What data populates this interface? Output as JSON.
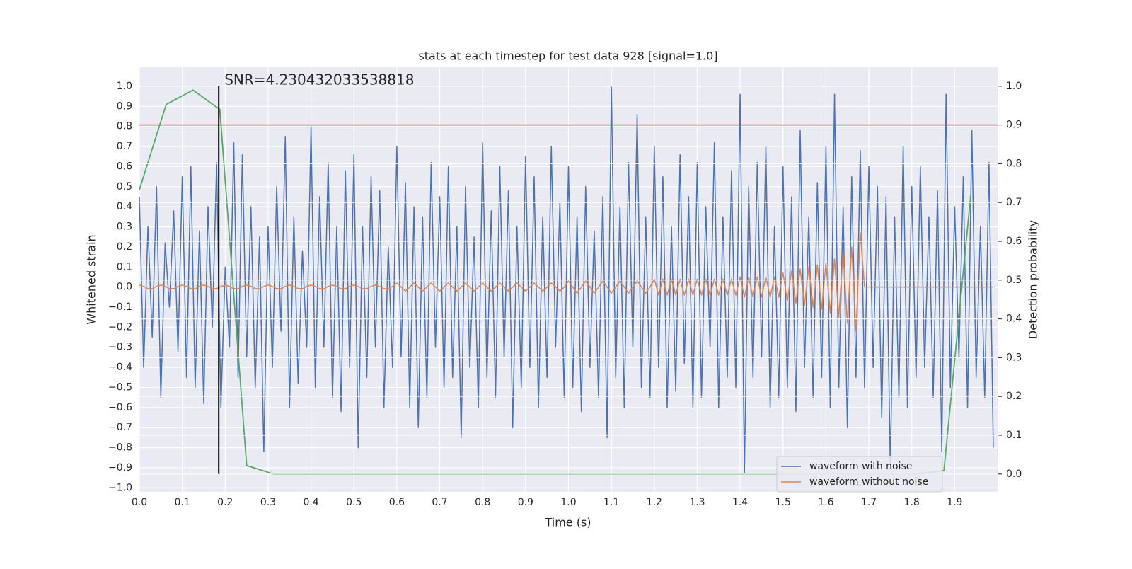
{
  "chart_data": {
    "type": "line",
    "title": "stats at each timestep for test data 928 [signal=1.0]",
    "xlabel": "Time (s)",
    "ylabel": "Whitened strain",
    "y2label": "Detection probability",
    "annotation": "SNR=4.230432033538818",
    "grid": true,
    "legend": "lower right",
    "xlim": [
      0,
      2.0
    ],
    "ylim": [
      -1.02,
      1.095
    ],
    "y2lim": [
      -0.046,
      1.049
    ],
    "xticks": [
      {
        "value": 0,
        "label": "0.0"
      },
      0.1,
      0.2,
      0.3,
      0.4,
      0.5,
      0.6,
      0.7,
      0.8,
      0.9,
      {
        "value": 1,
        "label": "1.0"
      },
      1.1,
      1.2,
      1.3,
      1.4,
      1.5,
      1.6,
      1.7,
      1.8,
      1.9
    ],
    "yticks": [
      {
        "value": -1,
        "label": "−1.0"
      },
      {
        "value": -0.9,
        "label": "−0.9"
      },
      {
        "value": -0.8,
        "label": "−0.8"
      },
      {
        "value": -0.7,
        "label": "−0.7"
      },
      {
        "value": -0.6,
        "label": "−0.6"
      },
      {
        "value": -0.5,
        "label": "−0.5"
      },
      {
        "value": -0.4,
        "label": "−0.4"
      },
      {
        "value": -0.3,
        "label": "−0.3"
      },
      {
        "value": -0.2,
        "label": "−0.2"
      },
      {
        "value": -0.1,
        "label": "−0.1"
      },
      {
        "value": 0,
        "label": "0.0"
      },
      0.1,
      0.2,
      0.3,
      0.4,
      0.5,
      0.6,
      0.7,
      0.8,
      0.9,
      {
        "value": 1,
        "label": "1.0"
      }
    ],
    "y2ticks": [
      {
        "value": 0,
        "label": "0.0"
      },
      0.1,
      0.2,
      0.3,
      0.4,
      0.5,
      0.6,
      0.7,
      0.8,
      0.9,
      {
        "value": 1,
        "label": "1.0"
      }
    ],
    "x": [
      0,
      0.01,
      0.02,
      0.03,
      0.04,
      0.05,
      0.06,
      0.07,
      0.08,
      0.09,
      0.1,
      0.11,
      0.12,
      0.13,
      0.14,
      0.15,
      0.16,
      0.17,
      0.18,
      0.19,
      0.2,
      0.21,
      0.22,
      0.23,
      0.24,
      0.25,
      0.26,
      0.27,
      0.28,
      0.29,
      0.3,
      0.31,
      0.32,
      0.33,
      0.34,
      0.35,
      0.36,
      0.37,
      0.38,
      0.39,
      0.4,
      0.41,
      0.42,
      0.43,
      0.44,
      0.45,
      0.46,
      0.47,
      0.48,
      0.49,
      0.5,
      0.51,
      0.52,
      0.53,
      0.54,
      0.55,
      0.56,
      0.57,
      0.58,
      0.59,
      0.6,
      0.61,
      0.62,
      0.63,
      0.64,
      0.65,
      0.66,
      0.67,
      0.68,
      0.69,
      0.7,
      0.71,
      0.72,
      0.73,
      0.74,
      0.75,
      0.76,
      0.77,
      0.78,
      0.79,
      0.8,
      0.81,
      0.82,
      0.83,
      0.84,
      0.85,
      0.86,
      0.87,
      0.88,
      0.89,
      0.9,
      0.91,
      0.92,
      0.93,
      0.94,
      0.95,
      0.96,
      0.97,
      0.98,
      0.99,
      1,
      1.01,
      1.02,
      1.03,
      1.04,
      1.05,
      1.06,
      1.07,
      1.08,
      1.09,
      1.1,
      1.11,
      1.12,
      1.13,
      1.14,
      1.15,
      1.16,
      1.17,
      1.18,
      1.19,
      1.2,
      1.21,
      1.22,
      1.23,
      1.24,
      1.25,
      1.26,
      1.27,
      1.28,
      1.29,
      1.3,
      1.31,
      1.32,
      1.33,
      1.34,
      1.35,
      1.36,
      1.37,
      1.38,
      1.39,
      1.4,
      1.41,
      1.42,
      1.43,
      1.44,
      1.45,
      1.46,
      1.47,
      1.48,
      1.49,
      1.5,
      1.51,
      1.52,
      1.53,
      1.54,
      1.55,
      1.56,
      1.57,
      1.58,
      1.59,
      1.6,
      1.61,
      1.62,
      1.63,
      1.64,
      1.65,
      1.66,
      1.67,
      1.68,
      1.69,
      1.7,
      1.71,
      1.72,
      1.73,
      1.74,
      1.75,
      1.76,
      1.77,
      1.78,
      1.79,
      1.8,
      1.81,
      1.82,
      1.83,
      1.84,
      1.85,
      1.86,
      1.87,
      1.88,
      1.89,
      1.9,
      1.91,
      1.92,
      1.93,
      1.94,
      1.95,
      1.96,
      1.97,
      1.98,
      1.99
    ],
    "series": [
      {
        "name": "waveform with noise",
        "color": "#4c72b0",
        "values": [
          0.45,
          -0.4,
          0.3,
          -0.25,
          0.5,
          -0.55,
          0.22,
          -0.1,
          0.38,
          -0.32,
          0.55,
          -0.45,
          0.6,
          -0.5,
          0.28,
          -0.58,
          0.4,
          -0.2,
          0.62,
          -0.6,
          0.1,
          -0.3,
          0.72,
          -0.45,
          0.66,
          -0.35,
          0.4,
          -0.5,
          0.25,
          -0.82,
          0.3,
          -0.4,
          0.5,
          -0.22,
          0.75,
          -0.6,
          0.35,
          -0.48,
          0.18,
          -0.3,
          0.8,
          -0.5,
          0.45,
          -0.3,
          0.62,
          -0.55,
          0.3,
          -0.62,
          0.58,
          -0.4,
          0.66,
          -0.8,
          0.3,
          -0.45,
          0.55,
          -0.3,
          0.48,
          -0.6,
          0.2,
          -0.4,
          0.7,
          -0.35,
          0.52,
          -0.6,
          0.4,
          -0.7,
          0.35,
          -0.55,
          0.62,
          -0.3,
          0.45,
          -0.5,
          0.6,
          -0.45,
          0.3,
          -0.75,
          0.5,
          -0.4,
          0.25,
          -0.6,
          0.72,
          -0.45,
          0.38,
          -0.55,
          0.6,
          -0.35,
          0.48,
          -0.7,
          0.3,
          -0.5,
          0.65,
          -0.4,
          0.55,
          -0.6,
          0.35,
          -0.45,
          0.7,
          -0.3,
          0.42,
          -0.55,
          0.6,
          -0.5,
          0.35,
          -0.62,
          0.5,
          -0.4,
          0.28,
          -0.55,
          0.45,
          -0.75,
          1.0,
          -0.45,
          0.4,
          -0.6,
          0.62,
          -0.3,
          0.86,
          -0.5,
          0.35,
          -0.55,
          0.7,
          -0.4,
          0.55,
          -0.6,
          0.3,
          -0.52,
          0.66,
          -0.38,
          0.45,
          -0.6,
          0.62,
          -0.55,
          0.4,
          -0.3,
          0.72,
          -0.6,
          0.35,
          -0.45,
          0.58,
          -0.5,
          0.96,
          -0.93,
          0.5,
          -0.45,
          0.62,
          -0.35,
          0.7,
          -0.6,
          0.3,
          -0.55,
          0.6,
          -0.5,
          0.45,
          -0.62,
          0.78,
          -0.4,
          0.35,
          -0.55,
          0.52,
          -0.45,
          0.7,
          -0.6,
          0.96,
          -0.5,
          0.4,
          -0.7,
          0.55,
          -0.45,
          0.68,
          -0.5,
          0.6,
          -0.4,
          0.5,
          -0.65,
          0.45,
          -0.9,
          0.35,
          -0.55,
          0.7,
          -0.6,
          0.5,
          -0.45,
          0.6,
          -0.4,
          0.35,
          -0.55,
          0.48,
          -0.82,
          0.96,
          -0.5,
          0.4,
          -0.35,
          0.55,
          -0.6,
          0.78,
          -0.45,
          0.3,
          -0.55,
          0.62,
          -0.8
        ]
      },
      {
        "name": "waveform without noise",
        "color": "#dd8452",
        "values": [
          0.01,
          0.003,
          -0.008,
          -0.008,
          0.003,
          0.01,
          0.003,
          -0.008,
          -0.008,
          0.003,
          0.01,
          0.003,
          -0.008,
          -0.008,
          0.003,
          0.01,
          0.003,
          -0.008,
          -0.008,
          0.003,
          0.01,
          0.003,
          -0.008,
          -0.008,
          0.003,
          0.01,
          0.003,
          -0.008,
          -0.008,
          0.003,
          0.01,
          0.003,
          -0.008,
          -0.008,
          0.003,
          0.01,
          0.003,
          -0.008,
          -0.008,
          0.003,
          0.01,
          0.003,
          -0.008,
          -0.008,
          0.003,
          0.01,
          0.003,
          -0.008,
          -0.008,
          0.003,
          0.01,
          0.003,
          -0.008,
          -0.008,
          0.003,
          0.01,
          0.003,
          -0.008,
          -0.008,
          0.003,
          0.02,
          0,
          -0.02,
          0,
          0.02,
          0,
          -0.02,
          0,
          0.02,
          0,
          -0.02,
          0,
          0.02,
          0,
          -0.02,
          0,
          0.02,
          0,
          -0.02,
          0,
          0.02,
          0,
          -0.02,
          0,
          0.02,
          0,
          -0.02,
          0,
          0.02,
          0,
          -0.02,
          0,
          0.02,
          0,
          -0.02,
          0,
          0.02,
          0,
          -0.02,
          0,
          0.03,
          0,
          -0.03,
          0,
          0.03,
          0,
          -0.03,
          0,
          0.03,
          0,
          -0.03,
          0,
          0.03,
          0,
          -0.03,
          0,
          0.03,
          0,
          -0.03,
          0,
          0.04,
          -0.04,
          0.04,
          -0.04,
          0.04,
          -0.04,
          0.04,
          -0.04,
          0.04,
          -0.04,
          0.04,
          -0.04,
          0.04,
          -0.04,
          0.04,
          -0.04,
          0.04,
          -0.04,
          0.04,
          -0.04,
          0.05,
          -0.05,
          0.05,
          -0.05,
          0.05,
          -0.05,
          0.05,
          -0.05,
          0.05,
          -0.05,
          0.07,
          -0.07,
          0.08,
          -0.08,
          0.09,
          -0.09,
          0.1,
          -0.1,
          0.11,
          -0.11,
          0.12,
          -0.13,
          0.14,
          -0.15,
          0.17,
          -0.18,
          0.2,
          -0.22,
          0.27,
          0,
          0,
          0,
          0,
          0,
          0,
          0,
          0,
          0,
          0,
          0,
          0,
          0,
          0,
          0,
          0,
          0,
          0,
          0,
          0,
          0,
          0,
          0,
          0,
          0,
          0,
          0,
          0,
          0,
          0,
          0
        ]
      }
    ],
    "probability": {
      "color": "#55a868",
      "axis": "y2",
      "x": [
        0,
        0.0625,
        0.125,
        0.1875,
        0.25,
        0.3125,
        0.375,
        0.4375,
        0.5,
        0.5625,
        0.625,
        0.6875,
        0.75,
        0.8125,
        0.875,
        0.9375,
        1,
        1.0625,
        1.125,
        1.1875,
        1.25,
        1.3125,
        1.375,
        1.4375,
        1.5,
        1.5625,
        1.625,
        1.6875,
        1.75,
        1.8125,
        1.875,
        1.9375
      ],
      "values": [
        0.733,
        0.953,
        0.99,
        0.94,
        0.022,
        0,
        0,
        0,
        0,
        0,
        0,
        0,
        0,
        0,
        0,
        0,
        0,
        0,
        0,
        0,
        0,
        0,
        0,
        0,
        0,
        0,
        0,
        0,
        0,
        0,
        0.009,
        0.72
      ]
    },
    "threshold": {
      "value": 0.9,
      "axis": "y2",
      "color": "#c44e52"
    },
    "detection_line": {
      "x": 0.185,
      "ymin": 0,
      "ymax": 1,
      "axis": "y2",
      "color": "#000000"
    }
  }
}
